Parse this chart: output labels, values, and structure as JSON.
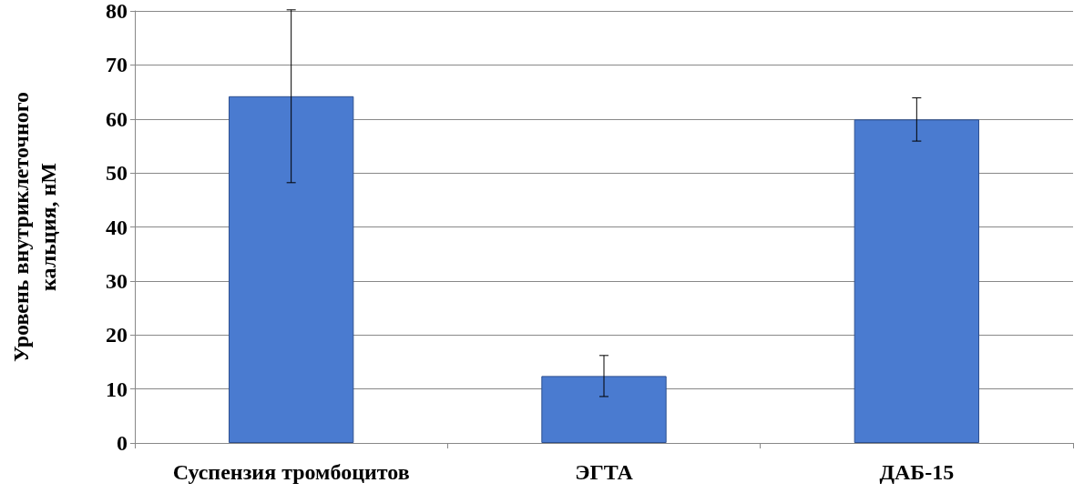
{
  "chart_data": {
    "type": "bar",
    "ylabel": "Уровень внутриклеточного\nкальция, нМ",
    "categories": [
      "Суспензия тромбоцитов",
      "ЭГТА",
      "ДАБ-15"
    ],
    "values": [
      64.2,
      12.4,
      59.9
    ],
    "errors": [
      16,
      3.8,
      4
    ],
    "color": "#4a7bd0",
    "ylim": [
      0,
      80
    ],
    "yticks": [
      0,
      10,
      20,
      30,
      40,
      50,
      60,
      70,
      80
    ],
    "grid": "y"
  }
}
